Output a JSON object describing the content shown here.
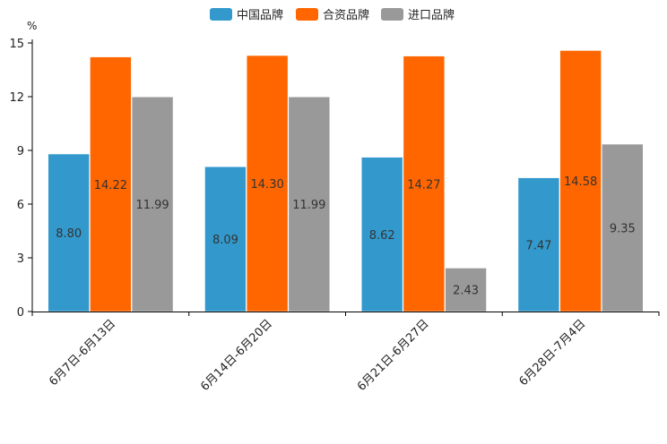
{
  "chart_data": {
    "type": "bar",
    "title": "",
    "xlabel": "",
    "ylabel": "%",
    "ylim": [
      0,
      15
    ],
    "yticks": [
      0,
      3,
      6,
      9,
      12,
      15
    ],
    "grid": false,
    "legend_position": "top-center",
    "categories": [
      "6月7日-6月13日",
      "6月14日-6月20日",
      "6月21日-6月27日",
      "6月28日-7月4日"
    ],
    "series": [
      {
        "name": "中国品牌",
        "color": "#3399cc",
        "values": [
          8.8,
          8.09,
          8.62,
          7.47
        ],
        "labels": [
          "8.80",
          "8.09",
          "8.62",
          "7.47"
        ]
      },
      {
        "name": "合资品牌",
        "color": "#ff6600",
        "values": [
          14.22,
          14.3,
          14.27,
          14.58
        ],
        "labels": [
          "14.22",
          "14.30",
          "14.27",
          "14.58"
        ]
      },
      {
        "name": "进口品牌",
        "color": "#999999",
        "values": [
          11.99,
          11.99,
          2.43,
          9.35
        ],
        "labels": [
          "11.99",
          "11.99",
          "2.43",
          "9.35"
        ]
      }
    ]
  }
}
